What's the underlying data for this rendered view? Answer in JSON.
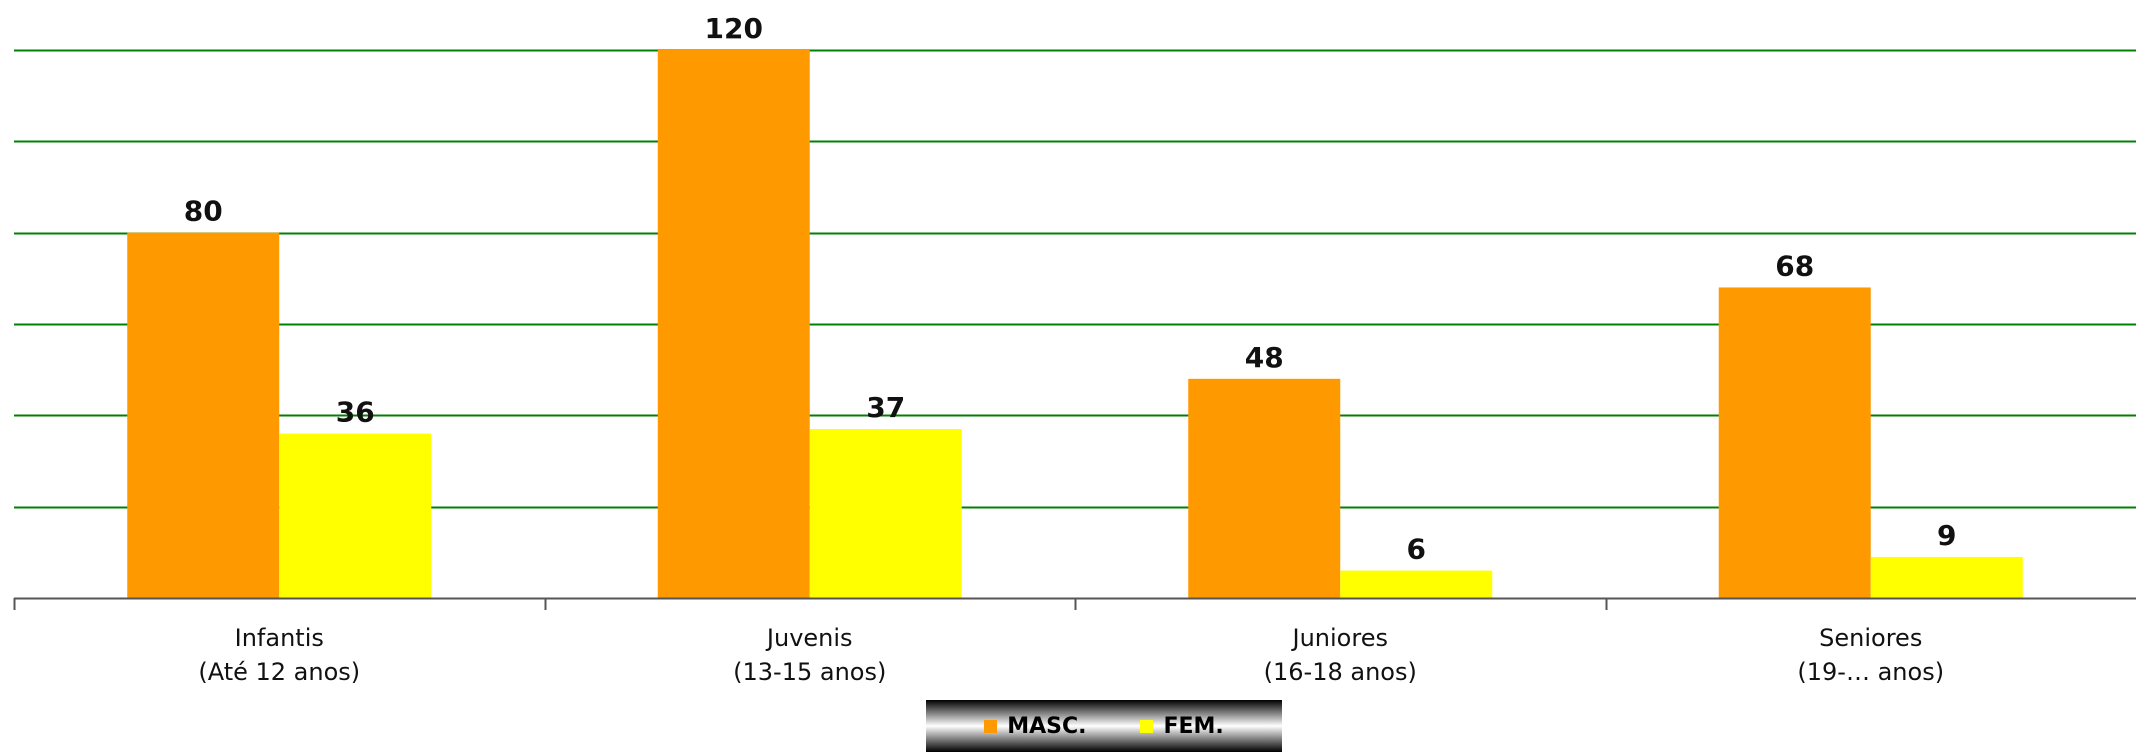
{
  "chart_data": {
    "type": "bar",
    "title": "",
    "xlabel": "",
    "ylabel": "",
    "ylim": [
      0,
      120
    ],
    "y_gridlines": [
      20,
      40,
      60,
      80,
      100,
      120
    ],
    "grid": true,
    "legend_position": "bottom",
    "categories": [
      [
        "Infantis",
        "(Até 12 anos)"
      ],
      [
        "Juvenis",
        "(13-15 anos)"
      ],
      [
        "Juniores",
        "(16-18 anos)"
      ],
      [
        "Seniores",
        "(19-… anos)"
      ]
    ],
    "series": [
      {
        "name": "MASC.",
        "color": "#FF9900",
        "values": [
          80,
          120,
          48,
          68
        ]
      },
      {
        "name": "FEM.",
        "color": "#FFFF00",
        "values": [
          36,
          37,
          6,
          9
        ]
      }
    ],
    "gridline_color": "#008000",
    "axis_color": "#555555"
  }
}
